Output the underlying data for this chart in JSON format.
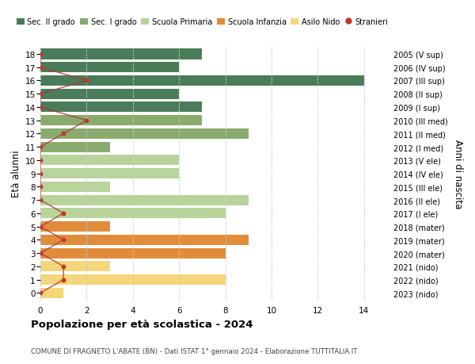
{
  "ages": [
    18,
    17,
    16,
    15,
    14,
    13,
    12,
    11,
    10,
    9,
    8,
    7,
    6,
    5,
    4,
    3,
    2,
    1,
    0
  ],
  "right_labels": [
    "2005 (V sup)",
    "2006 (IV sup)",
    "2007 (III sup)",
    "2008 (II sup)",
    "2009 (I sup)",
    "2010 (III med)",
    "2011 (II med)",
    "2012 (I med)",
    "2013 (V ele)",
    "2014 (IV ele)",
    "2015 (III ele)",
    "2016 (II ele)",
    "2017 (I ele)",
    "2018 (mater)",
    "2019 (mater)",
    "2020 (mater)",
    "2021 (nido)",
    "2022 (nido)",
    "2023 (nido)"
  ],
  "bar_values": [
    7,
    6,
    14,
    6,
    7,
    7,
    9,
    3,
    6,
    6,
    3,
    9,
    8,
    3,
    9,
    8,
    3,
    8,
    1
  ],
  "bar_colors": [
    "#4a7c59",
    "#4a7c59",
    "#4a7c59",
    "#4a7c59",
    "#4a7c59",
    "#8aab6e",
    "#8aab6e",
    "#8aab6e",
    "#b8d49a",
    "#b8d49a",
    "#b8d49a",
    "#b8d49a",
    "#b8d49a",
    "#e08c3a",
    "#e08c3a",
    "#e08c3a",
    "#f5d67a",
    "#f5d67a",
    "#f5d67a"
  ],
  "stranieri_values": [
    0,
    0,
    2,
    0,
    0,
    2,
    1,
    0,
    0,
    0,
    0,
    0,
    1,
    0,
    1,
    0,
    1,
    1,
    0
  ],
  "legend_labels": [
    "Sec. II grado",
    "Sec. I grado",
    "Scuola Primaria",
    "Scuola Infanzia",
    "Asilo Nido",
    "Stranieri"
  ],
  "legend_colors": [
    "#4a7c59",
    "#8aab6e",
    "#b8d49a",
    "#e08c3a",
    "#f5d67a",
    "#c0392b"
  ],
  "ylabel_left": "Età alunni",
  "ylabel_right": "Anni di nascita",
  "title": "Popolazione per età scolastica - 2024",
  "subtitle": "COMUNE DI FRAGNETO L'ABATE (BN) - Dati ISTAT 1° gennaio 2024 - Elaborazione TUTTITALIA.IT",
  "xlim": [
    0,
    15
  ],
  "background_color": "#ffffff",
  "grid_color": "#cccccc",
  "bar_height": 0.78,
  "stranieri_color": "#c0392b",
  "stranieri_line_color": "#b03030",
  "xticks": [
    0,
    2,
    4,
    6,
    8,
    10,
    12,
    14
  ],
  "fig_width": 6.0,
  "fig_height": 4.6,
  "dpi": 100
}
